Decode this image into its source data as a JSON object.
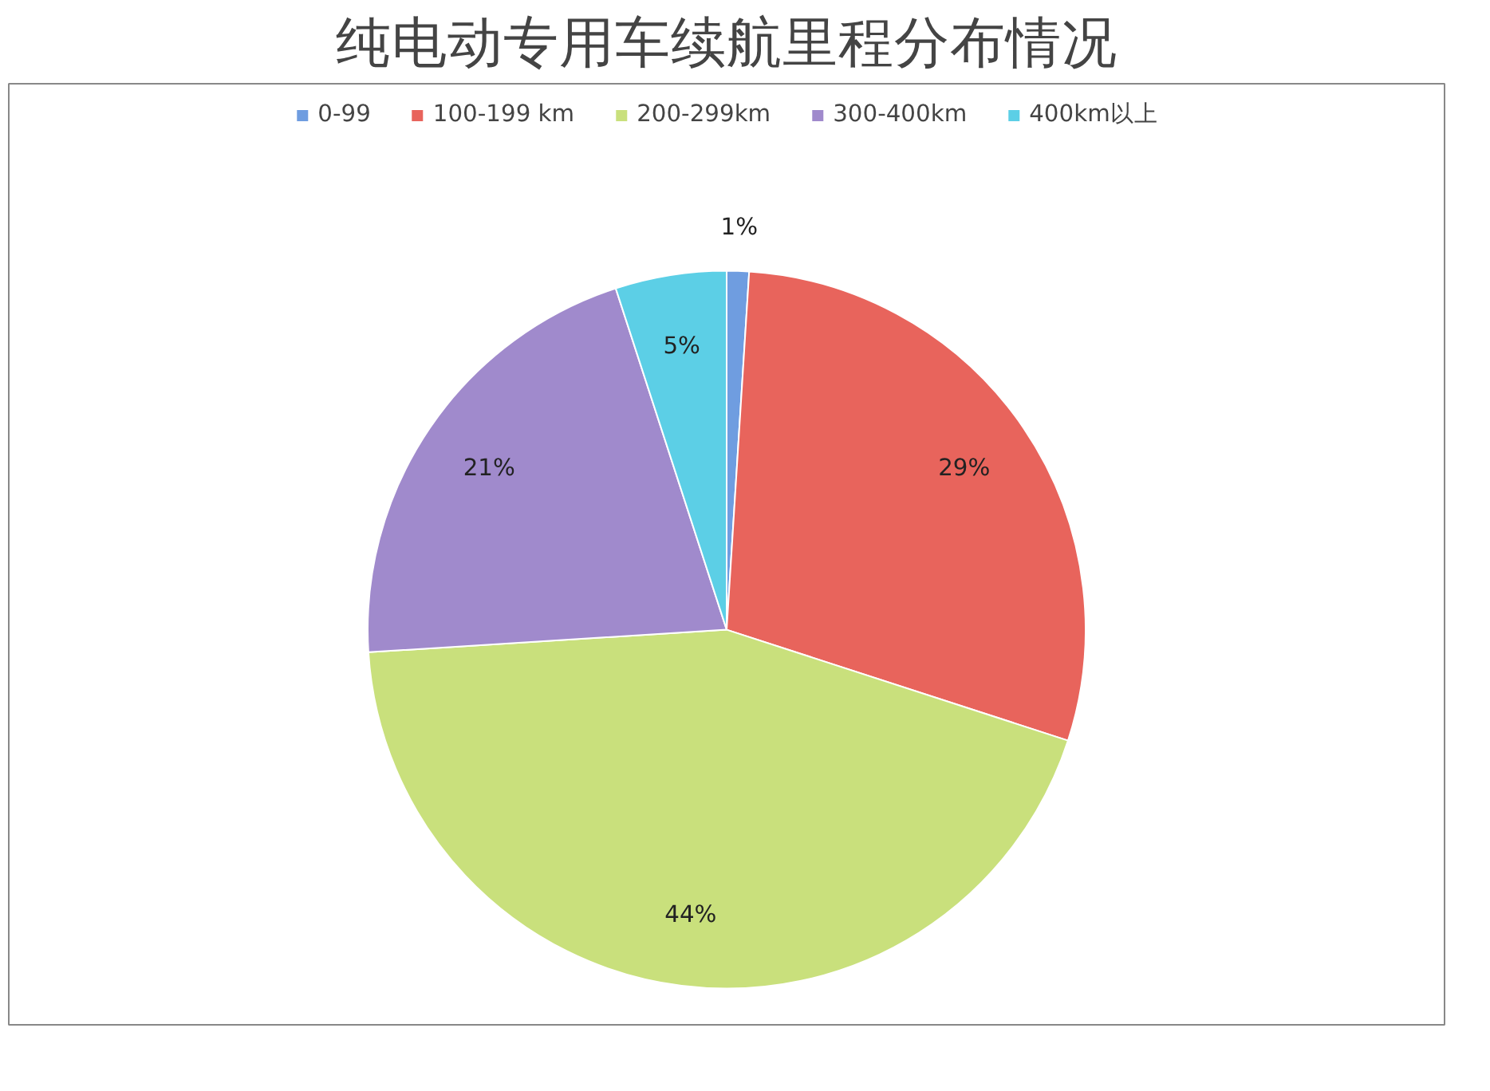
{
  "chart_data": {
    "type": "pie",
    "title": "纯电动专用车续航里程分布情况",
    "categories": [
      "0-99",
      "100-199 km",
      "200-299km",
      "300-400km",
      "400km以上"
    ],
    "values": [
      1,
      29,
      44,
      21,
      5
    ],
    "colors": [
      "#6f9de0",
      "#e8645c",
      "#c9e07c",
      "#a08acc",
      "#5ccfe6"
    ],
    "value_labels": [
      "1%",
      "29%",
      "44%",
      "21%",
      "5%"
    ],
    "legend": "top"
  }
}
